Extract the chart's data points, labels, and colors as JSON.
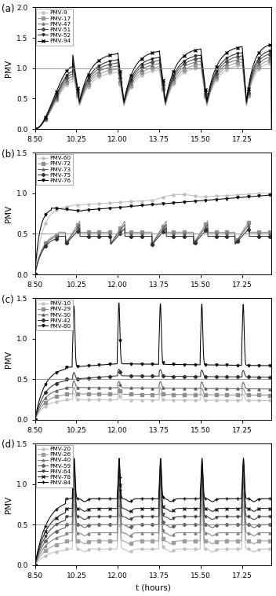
{
  "xlim": [
    8.5,
    18.5
  ],
  "xticks": [
    8.5,
    10.25,
    12.0,
    13.75,
    15.5,
    17.25
  ],
  "xticklabels": [
    "8.50",
    "10.25",
    "12.00",
    "13.75",
    "15.50",
    "17.25"
  ],
  "xlabel": "t (hours)",
  "ylabel": "PMV",
  "subplots": [
    {
      "label": "(a)",
      "ylim": [
        0.0,
        2.0
      ],
      "yticks": [
        0.0,
        0.5,
        1.0,
        1.5,
        2.0
      ],
      "hline": 1.0,
      "series": [
        {
          "name": "PMV-9",
          "final": 0.95,
          "spread": 0.0
        },
        {
          "name": "PMV-17",
          "final": 1.0,
          "spread": 0.05
        },
        {
          "name": "PMV-47",
          "final": 1.05,
          "spread": 0.1
        },
        {
          "name": "PMV-51",
          "final": 1.1,
          "spread": 0.15
        },
        {
          "name": "PMV-52",
          "final": 1.15,
          "spread": 0.2
        },
        {
          "name": "PMV-94",
          "final": 1.25,
          "spread": 0.25
        }
      ]
    },
    {
      "label": "(b)",
      "ylim": [
        0.0,
        1.5
      ],
      "yticks": [
        0.0,
        0.5,
        1.0,
        1.5
      ],
      "hline": 0.5,
      "series": [
        {
          "name": "PMV-60",
          "type": "high_smooth"
        },
        {
          "name": "PMV-72",
          "type": "mid_funnel"
        },
        {
          "name": "PMV-73",
          "type": "mid_funnel2"
        },
        {
          "name": "PMV-75",
          "type": "mid_funnel3"
        },
        {
          "name": "PMV-76",
          "type": "rising_dark"
        }
      ]
    },
    {
      "label": "(c)",
      "ylim": [
        0.0,
        1.5
      ],
      "yticks": [
        0.0,
        0.5,
        1.0,
        1.5
      ],
      "hline": 0.5,
      "series": [
        {
          "name": "PMV-10",
          "base_level": 0.25,
          "spike_amp": 0.0
        },
        {
          "name": "PMV-29",
          "base_level": 0.32,
          "spike_amp": 0.0
        },
        {
          "name": "PMV-30",
          "base_level": 0.4,
          "spike_amp": 0.0
        },
        {
          "name": "PMV-42",
          "base_level": 0.5,
          "spike_amp": 0.0
        },
        {
          "name": "PMV-80",
          "base_level": 0.65,
          "spike_amp": 0.75
        }
      ]
    },
    {
      "label": "(d)",
      "ylim": [
        0.0,
        1.5
      ],
      "yticks": [
        0.0,
        0.5,
        1.0,
        1.5
      ],
      "hline": 0.5,
      "series": [
        {
          "name": "PMV-20",
          "base_level": 0.2,
          "spike_amp": 0.55
        },
        {
          "name": "PMV-26",
          "base_level": 0.3,
          "spike_amp": 0.6
        },
        {
          "name": "PMV-40",
          "base_level": 0.4,
          "spike_amp": 0.65
        },
        {
          "name": "PMV-59",
          "base_level": 0.5,
          "spike_amp": 0.65
        },
        {
          "name": "PMV-64",
          "base_level": 0.6,
          "spike_amp": 0.6
        },
        {
          "name": "PMV-78",
          "base_level": 0.7,
          "spike_amp": 0.55
        },
        {
          "name": "PMV-84",
          "base_level": 0.82,
          "spike_amp": 0.5
        }
      ]
    }
  ]
}
